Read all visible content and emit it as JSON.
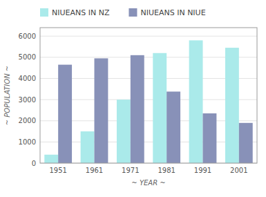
{
  "chart_data": {
    "type": "bar",
    "categories": [
      "1951",
      "1961",
      "1971",
      "1981",
      "1991",
      "2001"
    ],
    "series": [
      {
        "name": "NIUEANS IN NZ",
        "color": "#aaeaea",
        "values": [
          400,
          1500,
          3000,
          5200,
          5800,
          5450
        ]
      },
      {
        "name": "NIUEANS IN NIUE",
        "color": "#8891b8",
        "values": [
          4650,
          4950,
          5100,
          3380,
          2350,
          1900
        ]
      }
    ],
    "xlabel": "~ YEAR ~",
    "ylabel": "~ POPULATION ~",
    "ylim": [
      0,
      6400
    ],
    "yticks": [
      0,
      1000,
      2000,
      3000,
      4000,
      5000,
      6000
    ],
    "grid": true,
    "legend": "top"
  }
}
